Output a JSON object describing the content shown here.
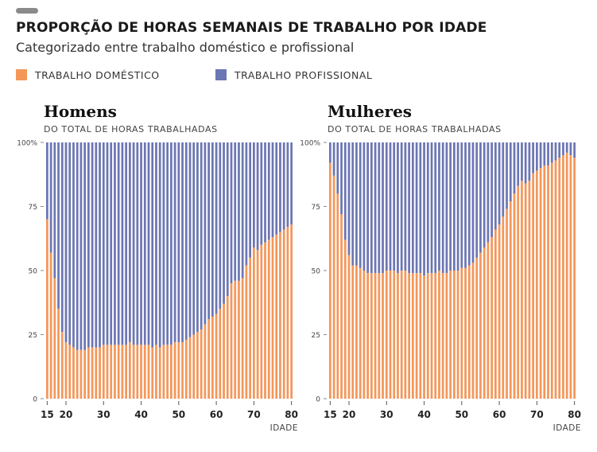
{
  "header": {
    "title": "PROPORÇÃO DE HORAS SEMANAIS DE TRABALHO POR IDADE",
    "subtitle": "Categorizado entre trabalho doméstico e profissional"
  },
  "legend": [
    {
      "label": "TRABALHO DOMÉSTICO",
      "color": "#F4975A"
    },
    {
      "label": "TRABALHO PROFISSIONAL",
      "color": "#6C76B3"
    }
  ],
  "panels": [
    {
      "title": "Homens",
      "subtitle": "DO TOTAL DE HORAS TRABALHADAS"
    },
    {
      "title": "Mulheres",
      "subtitle": "DO TOTAL DE HORAS TRABALHADAS"
    }
  ],
  "axes": {
    "y_ticks": [
      "0",
      "25",
      "50",
      "75",
      "100%"
    ],
    "x_ticks": [
      "15",
      "20",
      "30",
      "40",
      "50",
      "60",
      "70",
      "80"
    ],
    "x_title": "IDADE"
  },
  "chart_data": [
    {
      "type": "bar",
      "stacked": true,
      "title": "Homens",
      "ylabel": "DO TOTAL DE HORAS TRABALHADAS",
      "xlabel": "IDADE",
      "ylim": [
        0,
        100
      ],
      "x_range": [
        15,
        80
      ],
      "series": [
        {
          "name": "TRABALHO DOMÉSTICO",
          "color": "#F4975A",
          "values": [
            70,
            57,
            47,
            35,
            26,
            22,
            21,
            20,
            19,
            19,
            19,
            20,
            20,
            20,
            20,
            21,
            21,
            21,
            21,
            21,
            21,
            21,
            22,
            21,
            21,
            21,
            21,
            21,
            20,
            21,
            20,
            21,
            21,
            21,
            22,
            22,
            22,
            23,
            24,
            25,
            26,
            27,
            29,
            31,
            32,
            33,
            35,
            37,
            40,
            45,
            46,
            46,
            47,
            52,
            55,
            59,
            58,
            60,
            61,
            62,
            63,
            64,
            65,
            66,
            67,
            68
          ]
        },
        {
          "name": "TRABALHO PROFISSIONAL",
          "color": "#6C76B3",
          "values": [
            30,
            43,
            53,
            65,
            74,
            78,
            79,
            80,
            81,
            81,
            81,
            80,
            80,
            80,
            80,
            79,
            79,
            79,
            79,
            79,
            79,
            79,
            78,
            79,
            79,
            79,
            79,
            79,
            80,
            79,
            80,
            79,
            79,
            79,
            78,
            78,
            78,
            77,
            76,
            75,
            74,
            73,
            71,
            69,
            68,
            67,
            65,
            63,
            60,
            55,
            54,
            54,
            53,
            48,
            45,
            41,
            42,
            40,
            39,
            38,
            37,
            36,
            35,
            34,
            33,
            32
          ]
        }
      ]
    },
    {
      "type": "bar",
      "stacked": true,
      "title": "Mulheres",
      "ylabel": "DO TOTAL DE HORAS TRABALHADAS",
      "xlabel": "IDADE",
      "ylim": [
        0,
        100
      ],
      "x_range": [
        15,
        80
      ],
      "series": [
        {
          "name": "TRABALHO DOMÉSTICO",
          "color": "#F4975A",
          "values": [
            92,
            87,
            80,
            72,
            62,
            56,
            52,
            52,
            51,
            50,
            49,
            49,
            49,
            49,
            49,
            50,
            50,
            50,
            49,
            50,
            50,
            49,
            49,
            49,
            49,
            48,
            49,
            49,
            49,
            50,
            49,
            49,
            50,
            50,
            50,
            51,
            51,
            52,
            53,
            55,
            57,
            59,
            61,
            63,
            66,
            68,
            71,
            74,
            77,
            80,
            83,
            85,
            84,
            85,
            88,
            89,
            90,
            91,
            91,
            92,
            93,
            94,
            95,
            96,
            95,
            94
          ]
        },
        {
          "name": "TRABALHO PROFISSIONAL",
          "color": "#6C76B3",
          "values": [
            8,
            13,
            20,
            28,
            38,
            44,
            48,
            48,
            49,
            50,
            51,
            51,
            51,
            51,
            51,
            50,
            50,
            50,
            51,
            50,
            50,
            51,
            51,
            51,
            51,
            52,
            51,
            51,
            51,
            50,
            51,
            51,
            50,
            50,
            50,
            49,
            49,
            48,
            47,
            45,
            43,
            41,
            39,
            37,
            34,
            32,
            29,
            26,
            23,
            20,
            17,
            15,
            16,
            15,
            12,
            11,
            10,
            9,
            9,
            8,
            7,
            6,
            5,
            4,
            5,
            6
          ]
        }
      ]
    }
  ]
}
